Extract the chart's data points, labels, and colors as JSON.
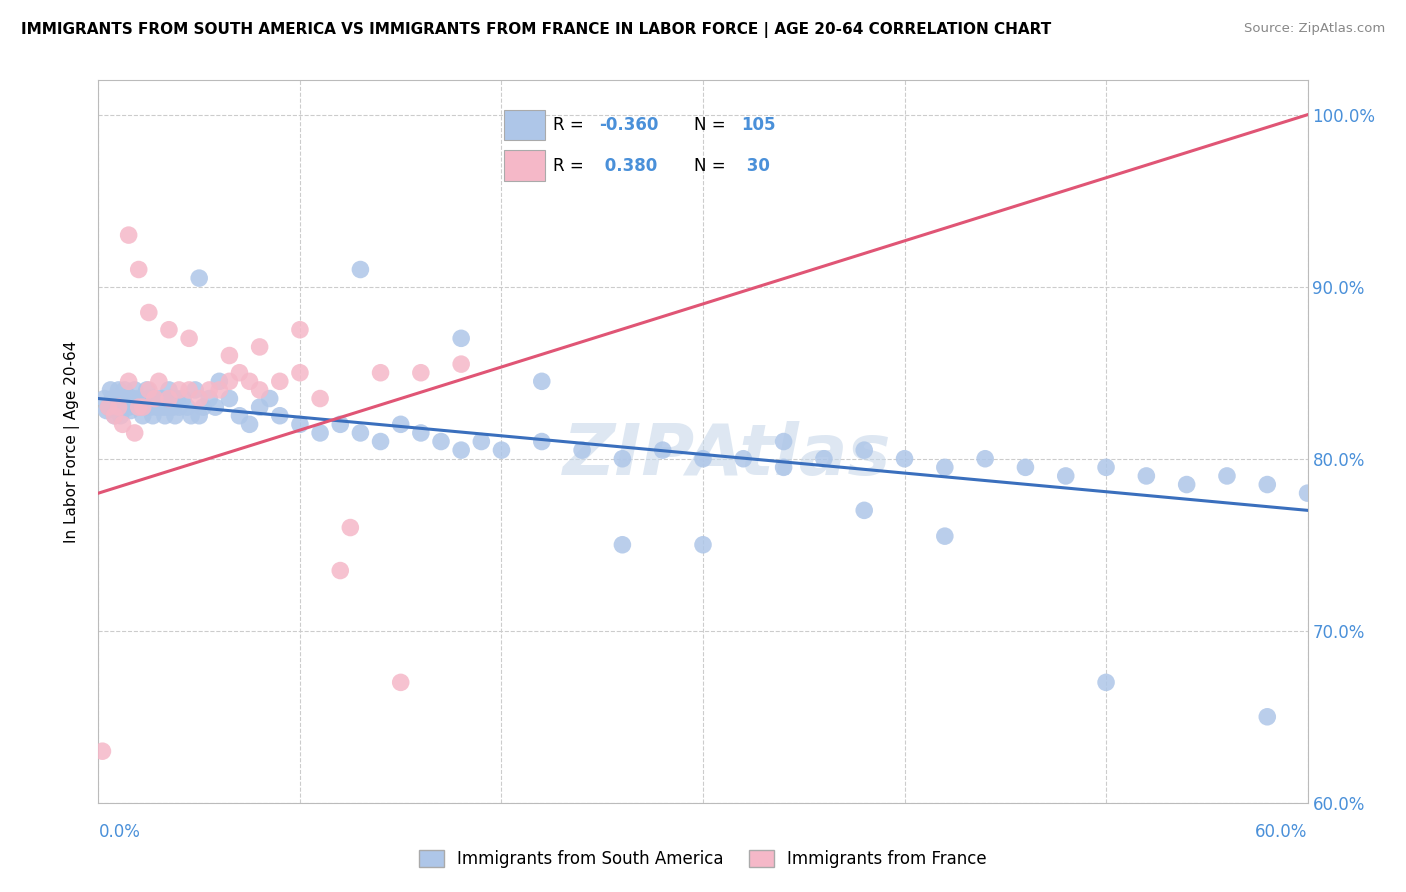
{
  "title": "IMMIGRANTS FROM SOUTH AMERICA VS IMMIGRANTS FROM FRANCE IN LABOR FORCE | AGE 20-64 CORRELATION CHART",
  "source": "Source: ZipAtlas.com",
  "ylabel": "In Labor Force | Age 20-64",
  "right_yticks": [
    60.0,
    70.0,
    80.0,
    90.0,
    100.0
  ],
  "legend_label_blue": "Immigrants from South America",
  "legend_label_pink": "Immigrants from France",
  "blue_color": "#aec6e8",
  "pink_color": "#f5b8c8",
  "blue_line_color": "#3a6fbd",
  "pink_line_color": "#e05575",
  "blue_dot_edge": "#aec6e8",
  "pink_dot_edge": "#f5b8c8",
  "watermark": "ZIPAtlas",
  "blue_scatter_x": [
    0.3,
    0.4,
    0.5,
    0.6,
    0.7,
    0.8,
    0.9,
    1.0,
    1.0,
    1.1,
    1.2,
    1.3,
    1.4,
    1.5,
    1.6,
    1.7,
    1.8,
    1.9,
    2.0,
    2.1,
    2.2,
    2.3,
    2.4,
    2.5,
    2.6,
    2.7,
    2.8,
    2.9,
    3.0,
    3.1,
    3.2,
    3.3,
    3.4,
    3.5,
    3.6,
    3.7,
    3.8,
    3.9,
    4.0,
    4.2,
    4.4,
    4.6,
    4.8,
    5.0,
    5.2,
    5.5,
    5.8,
    6.0,
    6.5,
    7.0,
    7.5,
    8.0,
    8.5,
    9.0,
    10.0,
    11.0,
    12.0,
    13.0,
    14.0,
    15.0,
    16.0,
    17.0,
    18.0,
    19.0,
    20.0,
    22.0,
    24.0,
    26.0,
    28.0,
    30.0,
    32.0,
    34.0,
    36.0,
    38.0,
    40.0,
    42.0,
    44.0,
    46.0,
    48.0,
    50.0,
    52.0,
    54.0,
    56.0,
    58.0,
    60.0
  ],
  "blue_scatter_y": [
    83.5,
    82.8,
    83.0,
    84.0,
    83.5,
    82.5,
    83.0,
    83.5,
    84.0,
    82.5,
    83.0,
    84.0,
    83.5,
    83.0,
    82.8,
    83.5,
    84.0,
    83.0,
    83.5,
    83.0,
    82.5,
    83.0,
    84.0,
    83.5,
    83.0,
    82.5,
    83.5,
    83.0,
    83.0,
    83.5,
    83.0,
    82.5,
    83.0,
    84.0,
    83.5,
    83.0,
    82.5,
    83.5,
    83.0,
    83.5,
    83.0,
    82.5,
    84.0,
    82.5,
    83.0,
    83.5,
    83.0,
    84.5,
    83.5,
    82.5,
    82.0,
    83.0,
    83.5,
    82.5,
    82.0,
    81.5,
    82.0,
    81.5,
    81.0,
    82.0,
    81.5,
    81.0,
    80.5,
    81.0,
    80.5,
    81.0,
    80.5,
    80.0,
    80.5,
    80.0,
    80.0,
    79.5,
    80.0,
    80.5,
    80.0,
    79.5,
    80.0,
    79.5,
    79.0,
    79.5,
    79.0,
    78.5,
    79.0,
    78.5,
    78.0
  ],
  "blue_scatter_x2": [
    5.0,
    13.0,
    18.0,
    22.0,
    26.0,
    30.0,
    34.0,
    38.0,
    42.0,
    50.0,
    58.0
  ],
  "blue_scatter_y2": [
    90.5,
    91.0,
    87.0,
    84.5,
    75.0,
    75.0,
    81.0,
    77.0,
    75.5,
    67.0,
    65.0
  ],
  "pink_scatter_x": [
    0.2,
    0.5,
    0.8,
    1.0,
    1.2,
    1.5,
    1.8,
    2.0,
    2.2,
    2.5,
    2.8,
    3.0,
    3.5,
    4.0,
    4.5,
    5.0,
    5.5,
    6.0,
    6.5,
    7.0,
    7.5,
    8.0,
    9.0,
    10.0,
    11.0,
    12.0,
    14.0,
    15.0,
    16.0,
    18.0
  ],
  "pink_scatter_y": [
    63.0,
    83.0,
    82.5,
    83.0,
    82.0,
    84.5,
    81.5,
    83.0,
    83.0,
    84.0,
    83.5,
    84.5,
    83.5,
    84.0,
    84.0,
    83.5,
    84.0,
    84.0,
    84.5,
    85.0,
    84.5,
    84.0,
    84.5,
    85.0,
    83.5,
    73.5,
    85.0,
    67.0,
    85.0,
    85.5
  ],
  "pink_scatter_x2": [
    1.5,
    2.0,
    2.5,
    3.5,
    4.5,
    6.5,
    8.0,
    10.0,
    12.5
  ],
  "pink_scatter_y2": [
    93.0,
    91.0,
    88.5,
    87.5,
    87.0,
    86.0,
    86.5,
    87.5,
    76.0
  ],
  "blue_line_x": [
    0.0,
    60.0
  ],
  "blue_line_y": [
    83.5,
    77.0
  ],
  "pink_line_x": [
    0.0,
    60.0
  ],
  "pink_line_y": [
    78.0,
    100.0
  ],
  "xlim": [
    0.0,
    60.0
  ],
  "ylim": [
    60.0,
    102.0
  ],
  "xgrid_ticks": [
    0,
    10,
    20,
    30,
    40,
    50,
    60
  ],
  "ygrid_ticks": [
    60,
    70,
    80,
    90,
    100
  ]
}
